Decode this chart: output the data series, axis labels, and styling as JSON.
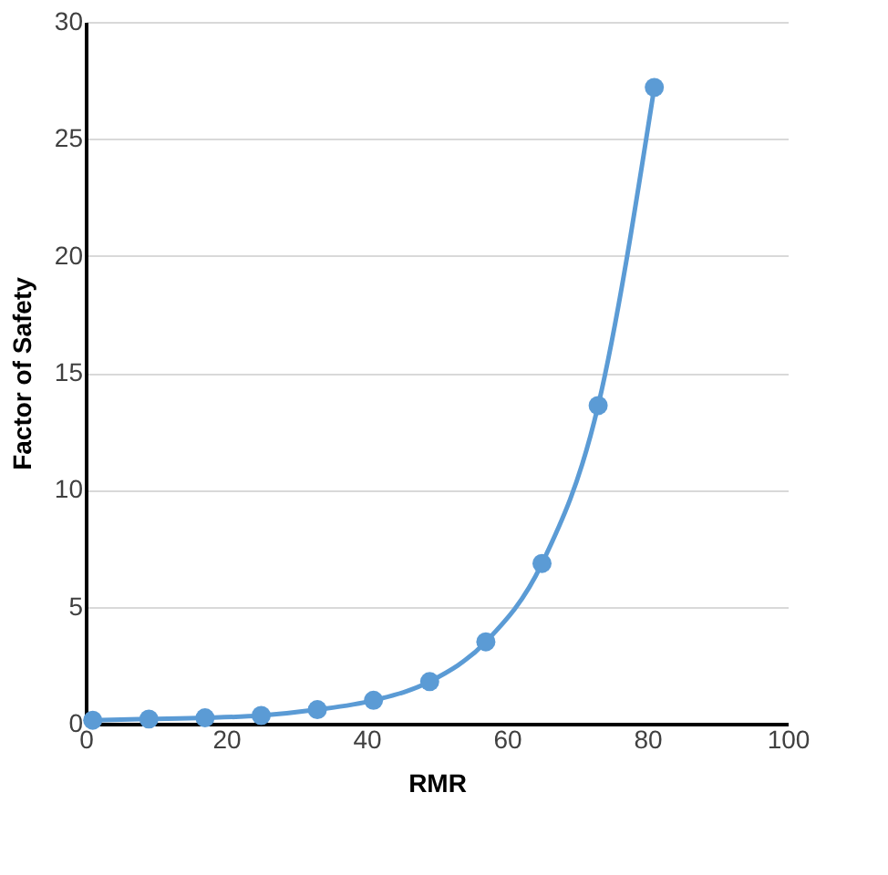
{
  "chart_data": {
    "type": "line",
    "xlabel": "RMR",
    "ylabel": "Factor of Safety",
    "x": [
      1,
      9,
      17,
      25,
      33,
      41,
      49,
      57,
      65,
      73,
      81
    ],
    "series": [
      {
        "color": "#5b9bd5",
        "values": [
          0.15,
          0.2,
          0.25,
          0.35,
          0.6,
          1.0,
          1.8,
          3.5,
          6.85,
          13.6,
          27.2
        ]
      }
    ],
    "xlim": [
      0,
      100
    ],
    "xticks": [
      0,
      20,
      40,
      60,
      80,
      100
    ],
    "ylim": [
      0,
      30
    ],
    "yticks": [
      0,
      5,
      10,
      15,
      20,
      25,
      30
    ],
    "grid": "y",
    "marker": "circle",
    "line_style": "solid"
  }
}
